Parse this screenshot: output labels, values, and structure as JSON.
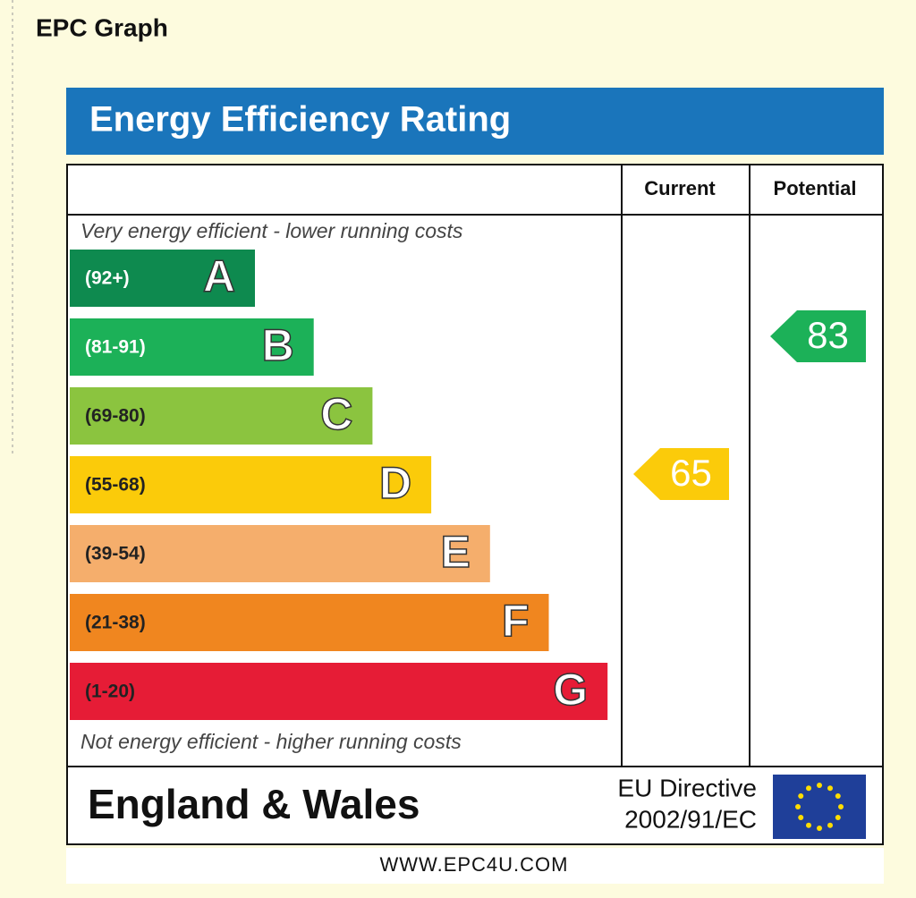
{
  "page": {
    "heading": "EPC Graph"
  },
  "epc": {
    "title": "Energy Efficiency Rating",
    "columns": [
      "Current",
      "Potential"
    ],
    "top_note": "Very energy efficient - lower running costs",
    "bottom_note": "Not energy efficient - higher running costs",
    "bands": [
      {
        "range": "(92+)",
        "letter": "A",
        "color": "#0e8a4f"
      },
      {
        "range": "(81-91)",
        "letter": "B",
        "color": "#1cb158"
      },
      {
        "range": "(69-80)",
        "letter": "C",
        "color": "#8bc43f"
      },
      {
        "range": "(55-68)",
        "letter": "D",
        "color": "#fbcb0a"
      },
      {
        "range": "(39-54)",
        "letter": "E",
        "color": "#f5ae6c"
      },
      {
        "range": "(21-38)",
        "letter": "F",
        "color": "#f0861f"
      },
      {
        "range": "(1-20)",
        "letter": "G",
        "color": "#e61c36"
      }
    ],
    "current": 65,
    "potential": 83,
    "footer_region": "England & Wales",
    "directive": [
      "EU Directive",
      "2002/91/EC"
    ],
    "website": "WWW.EPC4U.COM"
  }
}
